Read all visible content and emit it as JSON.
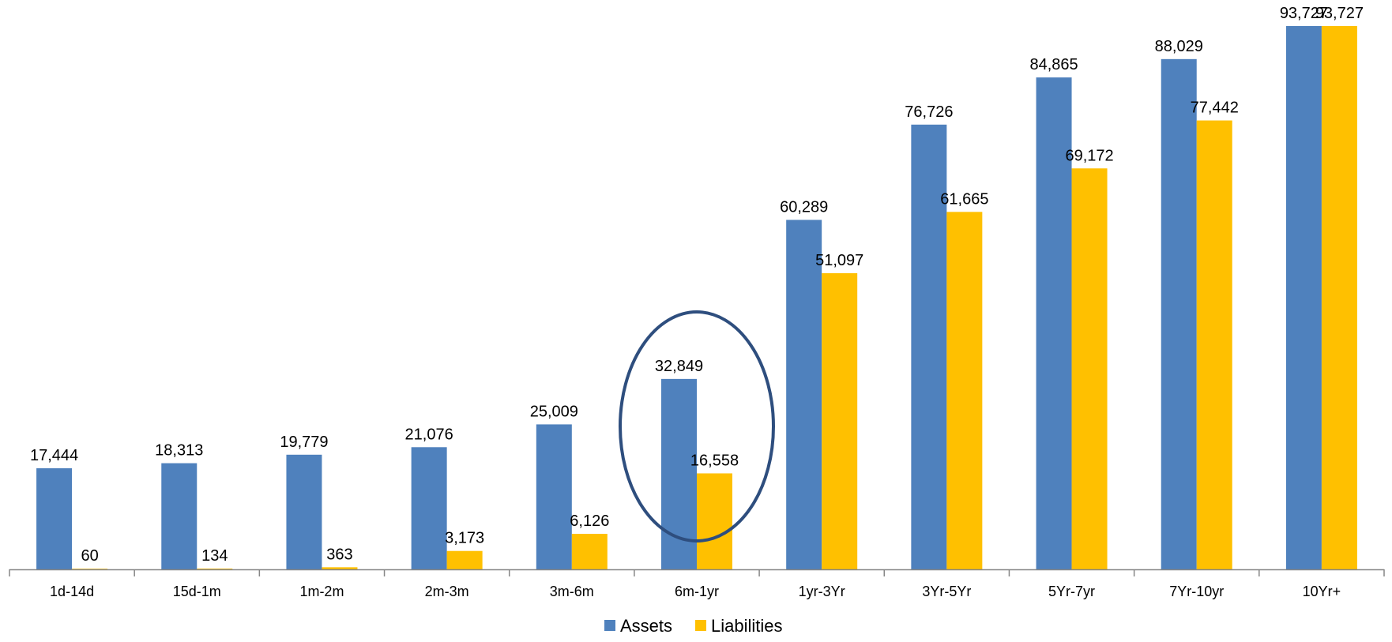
{
  "chart_data": {
    "type": "bar",
    "categories": [
      "1d-14d",
      "15d-1m",
      "1m-2m",
      "2m-3m",
      "3m-6m",
      "6m-1yr",
      "1yr-3Yr",
      "3Yr-5Yr",
      "5Yr-7yr",
      "7Yr-10yr",
      "10Yr+"
    ],
    "series": [
      {
        "name": "Assets",
        "color": "#4F81BD",
        "values": [
          17444,
          18313,
          19779,
          21076,
          25009,
          32849,
          60289,
          76726,
          84865,
          88029,
          93727
        ],
        "labels": [
          "17,444",
          "18,313",
          "19,779",
          "21,076",
          "25,009",
          "32,849",
          "60,289",
          "76,726",
          "84,865",
          "88,029",
          "93,727"
        ]
      },
      {
        "name": "Liabilities",
        "color": "#FFC000",
        "values": [
          60,
          134,
          363,
          3173,
          6126,
          16558,
          51097,
          61665,
          69172,
          77442,
          93727
        ],
        "labels": [
          "60",
          "134",
          "363",
          "3,173",
          "6,126",
          "16,558",
          "51,097",
          "61,665",
          "69,172",
          "77,442",
          "93,727"
        ]
      }
    ],
    "ylim": [
      0,
      93727
    ],
    "grid": false,
    "legend_position": "bottom",
    "annotation": {
      "type": "ellipse",
      "highlight_category": "6m-1yr",
      "color": "#2E4E7E"
    }
  }
}
